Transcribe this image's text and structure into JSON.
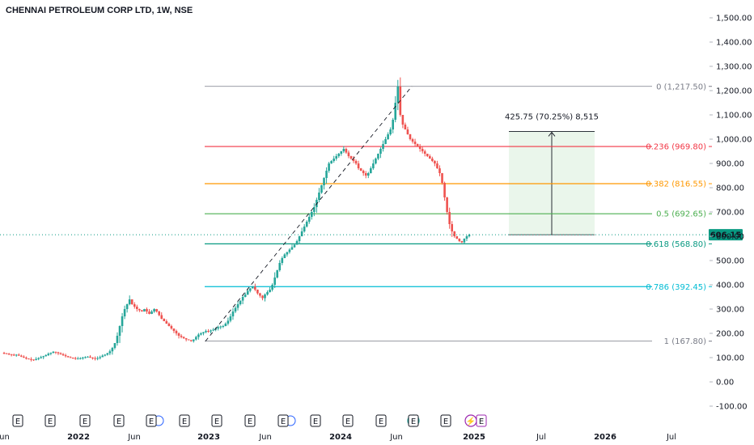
{
  "header": {
    "title": "CHENNAI PETROLEUM CORP LTD, 1W, NSE"
  },
  "colors": {
    "up": "#26a69a",
    "down": "#ef5350",
    "fib_0": "#787b86",
    "fib_236": "#f23645",
    "fib_382": "#ff9800",
    "fib_5": "#4caf50",
    "fib_618": "#089981",
    "fib_786": "#00bcd4",
    "fib_1": "#787b86",
    "price_tag": "#089981",
    "projection_fill": "#e8f5e9",
    "event_earnings": "#131722",
    "event_dividend": "#2962ff",
    "event_split": "#9c27b0"
  },
  "chart_data": {
    "type": "candlestick",
    "title": "CHENNAI PETROLEUM CORP LTD, 1W, NSE",
    "current_price": "606.15",
    "y_axis": {
      "ylim": [
        -120,
        1560
      ],
      "ticks": [
        "-100.00",
        "0.00",
        "100.00",
        "200.00",
        "300.00",
        "400.00",
        "500.00",
        "600.00",
        "700.00",
        "800.00",
        "900.00",
        "1,000.00",
        "1,100.00",
        "1,200.00",
        "1,300.00",
        "1,400.00",
        "1,500.00"
      ]
    },
    "x_axis": {
      "ticks": [
        "Jun",
        "2022",
        "Jun",
        "2023",
        "Jun",
        "2024",
        "Jun",
        "2025",
        "Jul",
        "2026",
        "Jul"
      ],
      "bold": [
        "2022",
        "2023",
        "2024",
        "2025",
        "2026"
      ]
    },
    "fibonacci_retracement": {
      "anchor_low": 167.8,
      "anchor_high": 1217.5,
      "levels": [
        {
          "ratio": "0",
          "price": 1217.5,
          "label": "0 (1,217.50)"
        },
        {
          "ratio": "0.236",
          "price": 969.8,
          "label": "0.236 (969.80)"
        },
        {
          "ratio": "0.382",
          "price": 816.55,
          "label": "0.382 (816.55)"
        },
        {
          "ratio": "0.5",
          "price": 692.65,
          "label": "0.5 (692.65)"
        },
        {
          "ratio": "0.618",
          "price": 568.8,
          "label": "0.618 (568.80)"
        },
        {
          "ratio": "0.786",
          "price": 392.45,
          "label": "0.786 (392.45)"
        },
        {
          "ratio": "1",
          "price": 167.8,
          "label": "1 (167.80)"
        }
      ]
    },
    "projection": {
      "label": "425.75 (70.25%) 8,515",
      "from_price": 606.15,
      "to_price": 1031.9
    },
    "events": [
      "E",
      "E",
      "E",
      "E",
      "E",
      "E",
      "E",
      "E",
      "E",
      "E",
      "E",
      "E",
      "E",
      "E",
      "E"
    ],
    "price_path": [
      120,
      118,
      116,
      114,
      112,
      110,
      112,
      108,
      104,
      100,
      96,
      94,
      92,
      90,
      94,
      98,
      102,
      106,
      110,
      116,
      120,
      124,
      122,
      118,
      114,
      110,
      106,
      102,
      100,
      98,
      96,
      96,
      98,
      100,
      102,
      104,
      100,
      98,
      96,
      98,
      102,
      108,
      112,
      118,
      126,
      140,
      160,
      190,
      230,
      270,
      300,
      320,
      340,
      320,
      310,
      300,
      295,
      290,
      300,
      290,
      280,
      290,
      300,
      290,
      275,
      260,
      250,
      240,
      230,
      220,
      210,
      200,
      190,
      185,
      180,
      175,
      172,
      168,
      175,
      185,
      195,
      200,
      205,
      210,
      208,
      212,
      215,
      220,
      225,
      228,
      230,
      240,
      252,
      270,
      290,
      305,
      320,
      335,
      350,
      360,
      375,
      385,
      392,
      380,
      365,
      355,
      345,
      360,
      370,
      380,
      400,
      430,
      460,
      490,
      510,
      525,
      535,
      545,
      555,
      565,
      580,
      600,
      620,
      640,
      660,
      680,
      700,
      720,
      750,
      780,
      810,
      840,
      870,
      900,
      910,
      920,
      930,
      940,
      950,
      960,
      945,
      930,
      920,
      910,
      900,
      880,
      870,
      860,
      850,
      860,
      880,
      900,
      920,
      940,
      960,
      980,
      1000,
      1020,
      1040,
      1080,
      1150,
      1217,
      1100,
      1060,
      1040,
      1020,
      1000,
      990,
      980,
      970,
      960,
      950,
      940,
      930,
      920,
      910,
      900,
      880,
      860,
      820,
      760,
      700,
      650,
      620,
      600,
      590,
      580,
      575,
      590,
      600,
      606
    ]
  }
}
